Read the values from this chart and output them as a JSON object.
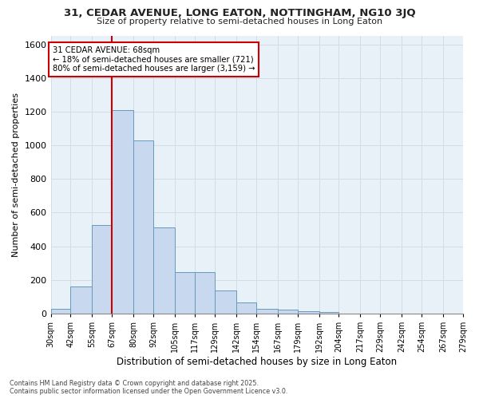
{
  "title_line1": "31, CEDAR AVENUE, LONG EATON, NOTTINGHAM, NG10 3JQ",
  "title_line2": "Size of property relative to semi-detached houses in Long Eaton",
  "xlabel": "Distribution of semi-detached houses by size in Long Eaton",
  "ylabel": "Number of semi-detached properties",
  "bin_edges": [
    30,
    42,
    55,
    67,
    80,
    92,
    105,
    117,
    129,
    142,
    154,
    167,
    179,
    192,
    204,
    217,
    229,
    242,
    254,
    267,
    279
  ],
  "bar_heights": [
    30,
    160,
    525,
    1210,
    1030,
    510,
    245,
    245,
    140,
    65,
    30,
    25,
    15,
    10,
    0,
    0,
    0,
    0,
    0,
    0
  ],
  "bar_color": "#c8d8ee",
  "bar_edge_color": "#6699bb",
  "grid_color": "#d0dde8",
  "property_line_x": 67,
  "property_line_color": "#cc0000",
  "annotation_text": "31 CEDAR AVENUE: 68sqm\n← 18% of semi-detached houses are smaller (721)\n80% of semi-detached houses are larger (3,159) →",
  "annotation_box_color": "#cc0000",
  "annotation_bg_color": "#ffffff",
  "ylim": [
    0,
    1650
  ],
  "yticks": [
    0,
    200,
    400,
    600,
    800,
    1000,
    1200,
    1400,
    1600
  ],
  "footer_text": "Contains HM Land Registry data © Crown copyright and database right 2025.\nContains public sector information licensed under the Open Government Licence v3.0.",
  "bg_color": "#ffffff",
  "plot_bg_color": "#e8f0f8"
}
